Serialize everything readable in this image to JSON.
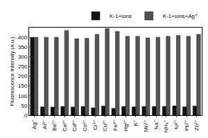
{
  "chart_data": {
    "type": "bar",
    "y_label": "Fluorescence Intensity (a.u.)",
    "categories": [
      "Ag⁺",
      "Al³⁺",
      "Ba²⁺",
      "Ca²⁺",
      "Cd²⁺",
      "Co²⁺",
      "Cr³⁺",
      "Cu²⁺",
      "Fe³⁺",
      "Hg²⁺",
      "K⁺",
      "Mn²⁺",
      "Na⁺",
      "NH₄⁺",
      "Ni²⁺",
      "Pb²⁺",
      "Zn²⁺"
    ],
    "series": [
      {
        "name": "K-1+ions",
        "color": "#111111",
        "values": [
          400,
          43,
          42,
          45,
          42,
          45,
          38,
          47,
          35,
          45,
          43,
          45,
          45,
          45,
          48,
          43,
          47
        ]
      },
      {
        "name": "K-1+ions+Ag⁺",
        "color": "#555555",
        "values": [
          400,
          400,
          400,
          435,
          393,
          395,
          415,
          445,
          430,
          405,
          405,
          397,
          400,
          405,
          410,
          405,
          415
        ]
      }
    ],
    "ylim": [
      0,
      450
    ],
    "yticks": [
      0,
      50,
      100,
      150,
      200,
      250,
      300,
      350,
      400
    ],
    "grid": false,
    "legend": "top"
  }
}
